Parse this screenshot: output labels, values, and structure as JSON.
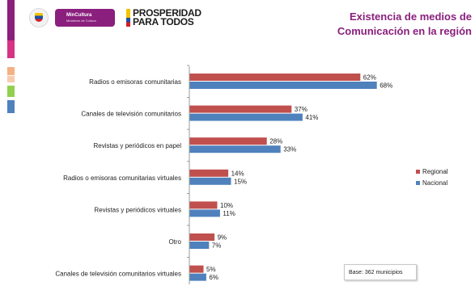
{
  "header": {
    "title_line1": "Existencia de medios de",
    "title_line2": "Comunicación en la región",
    "mincultura_label": "MinCultura",
    "mincultura_sub": "Ministerio de Cultura",
    "prosperidad_line1": "PROSPERIDAD",
    "prosperidad_line2": "PARA TODOS"
  },
  "colors": {
    "regional": "#c0504d",
    "nacional": "#4f81bd",
    "title": "#8a1f7d",
    "sidebar": [
      "#8a1f7d",
      "#8a1f7d",
      "#8a1f7d",
      "#d63384",
      "#ffffff",
      "#f4b183",
      "#f4b183",
      "#92d050",
      "#4f81bd"
    ]
  },
  "base_note": "Base: 362 municipios",
  "chart_data": {
    "type": "bar",
    "orientation": "horizontal",
    "categories": [
      "Radios o emisoras comunitarias",
      "Canales de televisión comunitarios",
      "Revistas y periódicos en papel",
      "Radios o emisoras comunitarias virtuales",
      "Revistas y periódicos virtuales",
      "Otro",
      "Canales de televisión comunitarios virtuales"
    ],
    "series": [
      {
        "name": "Regional",
        "values": [
          62,
          37,
          28,
          14,
          10,
          9,
          5
        ]
      },
      {
        "name": "Nacional",
        "values": [
          68,
          41,
          33,
          15,
          11,
          7,
          6
        ]
      }
    ],
    "value_suffix": "%",
    "title": "Existencia de medios de Comunicación en la región",
    "xlim": [
      0,
      100
    ],
    "legend_position": "right",
    "grid": false
  }
}
